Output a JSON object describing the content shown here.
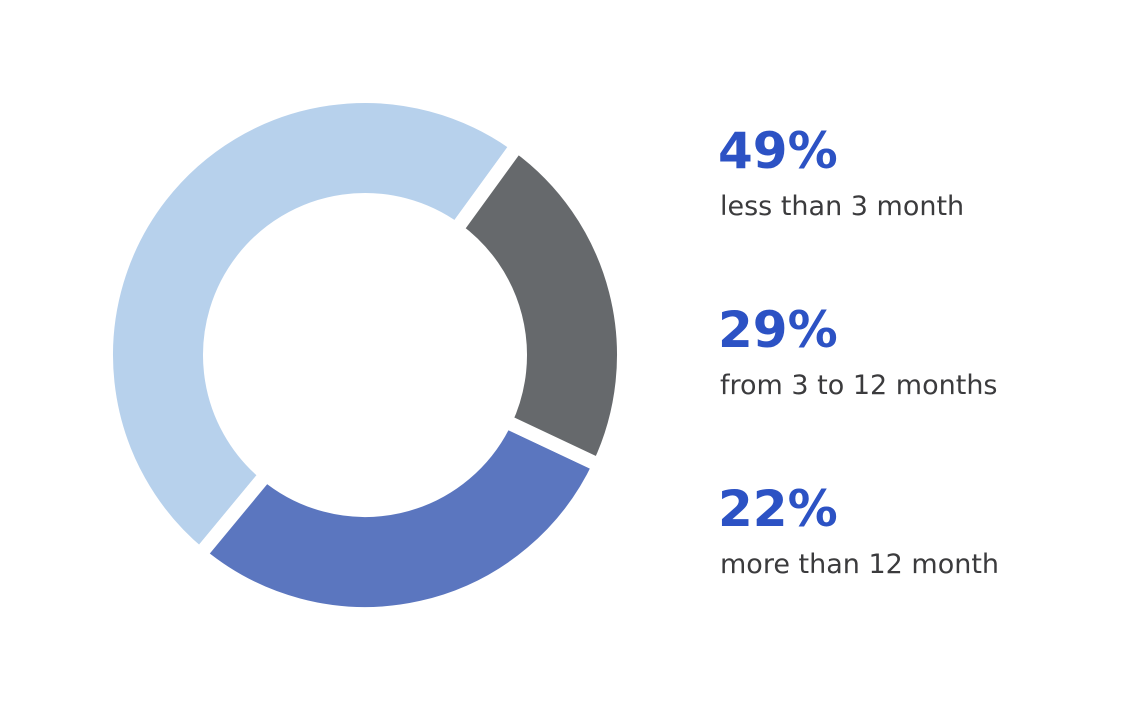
{
  "chart_data": {
    "type": "pie",
    "donut": true,
    "categories": [
      "less than 3 month",
      "from 3 to 12 months",
      "more than 12 month"
    ],
    "values": [
      49,
      29,
      22
    ],
    "value_labels": [
      "49%",
      "29%",
      "22%"
    ],
    "colors": [
      "#b7d1ec",
      "#5b76bf",
      "#66696c"
    ]
  }
}
